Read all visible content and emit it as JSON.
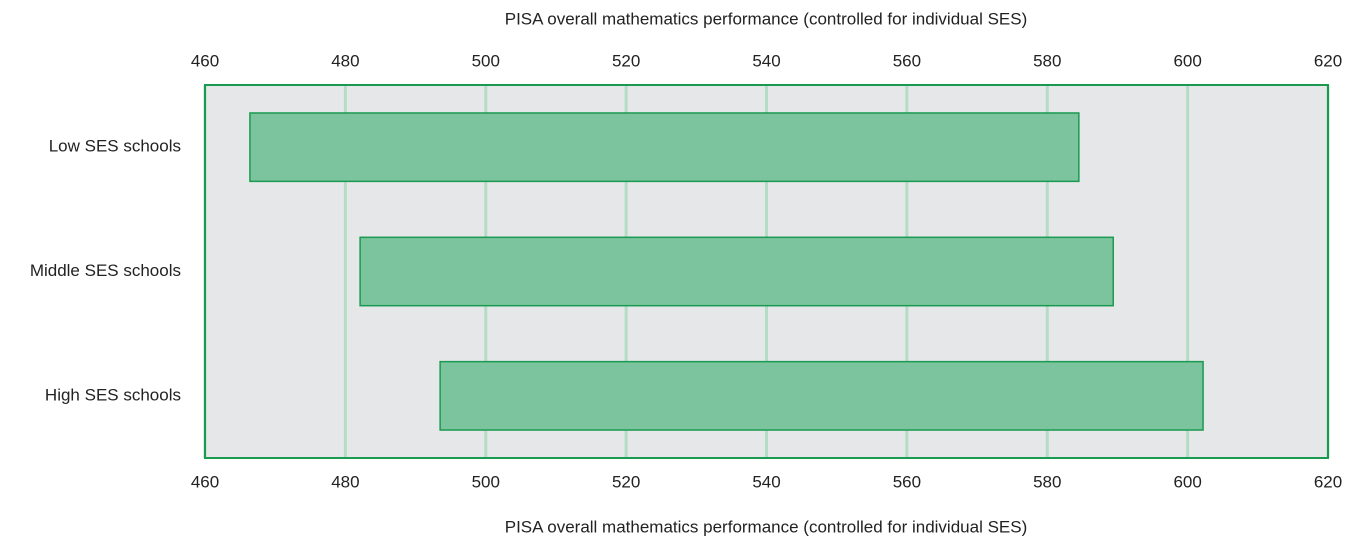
{
  "chart_data": {
    "type": "range",
    "xlabel": "PISA overall mathematics performance (controlled for individual SES)",
    "categories": [
      "Low SES schools",
      "Middle SES schools",
      "High SES schools"
    ],
    "low": [
      466.4,
      482.1,
      493.5
    ],
    "high": [
      584.5,
      589.4,
      602.2
    ],
    "color": "#7bc49d",
    "edge_color": "#1a9a50",
    "xlim": [
      460,
      620
    ],
    "xticks": [
      460,
      480,
      500,
      520,
      540,
      560,
      580,
      600,
      620
    ],
    "grid": true
  }
}
